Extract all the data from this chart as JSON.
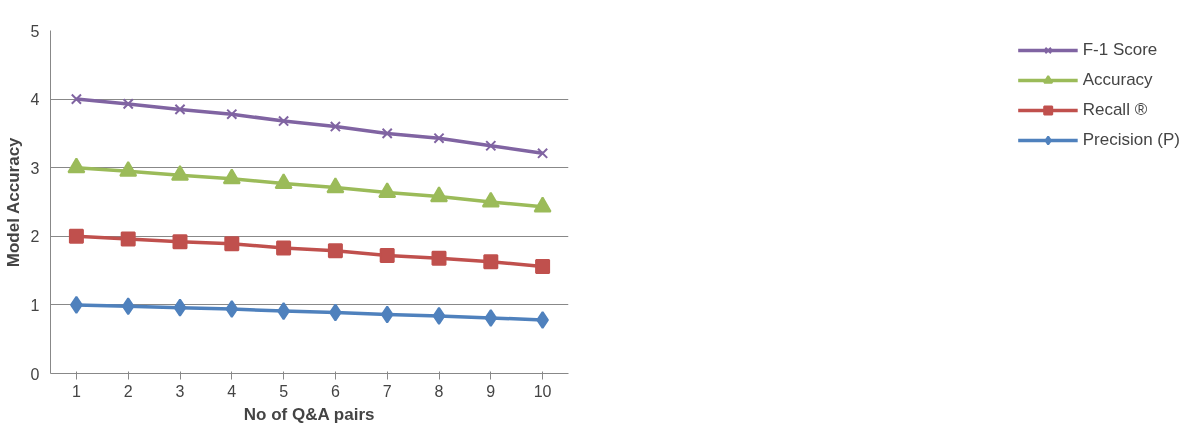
{
  "chart_data": {
    "type": "line",
    "xlabel": "No of Q&A pairs",
    "ylabel": "Model Accuracy",
    "categories": [
      "1",
      "2",
      "3",
      "4",
      "5",
      "6",
      "7",
      "8",
      "9",
      "10"
    ],
    "ylim": [
      0,
      5
    ],
    "yticks": [
      0,
      1,
      2,
      3,
      4,
      5
    ],
    "grid": "y",
    "legend": "right",
    "series": [
      {
        "name": "F-1 Score",
        "color": "#8064a2",
        "marker": "cross",
        "values": [
          4.0,
          3.93,
          3.85,
          3.78,
          3.68,
          3.6,
          3.5,
          3.43,
          3.32,
          3.21
        ]
      },
      {
        "name": "Accuracy",
        "color": "#9bbb59",
        "marker": "triangle",
        "values": [
          3.0,
          2.95,
          2.89,
          2.84,
          2.77,
          2.71,
          2.64,
          2.58,
          2.5,
          2.43
        ]
      },
      {
        "name": "Recall ®",
        "color": "#c0504d",
        "marker": "square",
        "values": [
          2.0,
          1.96,
          1.92,
          1.89,
          1.83,
          1.79,
          1.72,
          1.68,
          1.63,
          1.56
        ]
      },
      {
        "name": "Precision (P)",
        "color": "#4f81bd",
        "marker": "diamond",
        "values": [
          1.0,
          0.98,
          0.96,
          0.94,
          0.91,
          0.89,
          0.86,
          0.84,
          0.81,
          0.78
        ]
      }
    ]
  }
}
